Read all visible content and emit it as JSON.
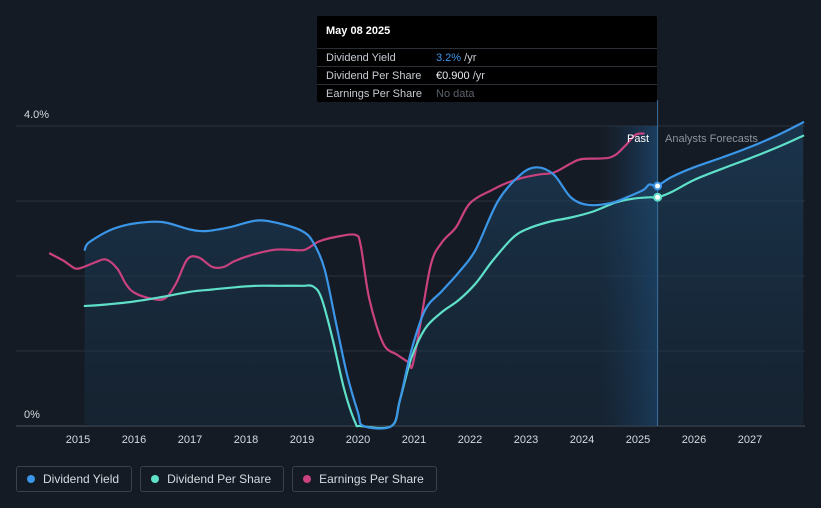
{
  "chart_data": {
    "type": "line",
    "y_axis": {
      "ticks": [
        "4.0%",
        "0%"
      ],
      "ylim": [
        0,
        4.0
      ]
    },
    "x_axis": {
      "ticks": [
        "2015",
        "2016",
        "2017",
        "2018",
        "2019",
        "2020",
        "2021",
        "2022",
        "2023",
        "2024",
        "2025",
        "2026",
        "2027"
      ]
    },
    "grid": true,
    "regions": {
      "past_label": "Past",
      "forecast_label": "Analysts Forecasts",
      "split_x": 2025.35
    },
    "series": [
      {
        "name": "Dividend Yield",
        "color": "#3b96e8",
        "points": [
          [
            2015.12,
            2.35
          ],
          [
            2015.2,
            2.45
          ],
          [
            2015.6,
            2.62
          ],
          [
            2016.0,
            2.7
          ],
          [
            2016.5,
            2.72
          ],
          [
            2017.0,
            2.62
          ],
          [
            2017.3,
            2.6
          ],
          [
            2017.7,
            2.65
          ],
          [
            2018.2,
            2.74
          ],
          [
            2018.6,
            2.7
          ],
          [
            2019.0,
            2.6
          ],
          [
            2019.2,
            2.45
          ],
          [
            2019.4,
            2.1
          ],
          [
            2019.6,
            1.4
          ],
          [
            2019.8,
            0.7
          ],
          [
            2020.0,
            0.18
          ],
          [
            2020.1,
            0
          ],
          [
            2020.6,
            0
          ],
          [
            2020.75,
            0.35
          ],
          [
            2020.95,
            1.0
          ],
          [
            2021.2,
            1.55
          ],
          [
            2021.5,
            1.8
          ],
          [
            2021.8,
            2.05
          ],
          [
            2022.1,
            2.35
          ],
          [
            2022.5,
            3.0
          ],
          [
            2022.9,
            3.35
          ],
          [
            2023.2,
            3.45
          ],
          [
            2023.5,
            3.35
          ],
          [
            2023.8,
            3.05
          ],
          [
            2024.1,
            2.95
          ],
          [
            2024.5,
            2.97
          ],
          [
            2024.8,
            3.05
          ],
          [
            2025.1,
            3.15
          ],
          [
            2025.2,
            3.22
          ],
          [
            2025.3,
            3.2
          ],
          [
            2025.35,
            3.2
          ],
          [
            2025.6,
            3.32
          ],
          [
            2026.0,
            3.45
          ],
          [
            2026.5,
            3.58
          ],
          [
            2027.0,
            3.72
          ],
          [
            2027.5,
            3.88
          ],
          [
            2027.95,
            4.05
          ]
        ]
      },
      {
        "name": "Dividend Per Share",
        "color": "#5fe0c9",
        "points": [
          [
            2015.12,
            1.6
          ],
          [
            2015.5,
            1.62
          ],
          [
            2016.0,
            1.66
          ],
          [
            2016.5,
            1.72
          ],
          [
            2017.0,
            1.79
          ],
          [
            2017.4,
            1.82
          ],
          [
            2017.8,
            1.85
          ],
          [
            2018.2,
            1.87
          ],
          [
            2018.6,
            1.87
          ],
          [
            2019.0,
            1.87
          ],
          [
            2019.2,
            1.86
          ],
          [
            2019.35,
            1.7
          ],
          [
            2019.55,
            1.15
          ],
          [
            2019.75,
            0.5
          ],
          [
            2019.95,
            0.05
          ],
          [
            2020.05,
            0
          ],
          [
            2020.6,
            0
          ],
          [
            2020.75,
            0.35
          ],
          [
            2020.95,
            0.9
          ],
          [
            2021.2,
            1.3
          ],
          [
            2021.5,
            1.52
          ],
          [
            2021.8,
            1.68
          ],
          [
            2022.1,
            1.9
          ],
          [
            2022.4,
            2.2
          ],
          [
            2022.75,
            2.5
          ],
          [
            2023.0,
            2.62
          ],
          [
            2023.4,
            2.72
          ],
          [
            2023.8,
            2.78
          ],
          [
            2024.2,
            2.86
          ],
          [
            2024.6,
            2.98
          ],
          [
            2024.9,
            3.03
          ],
          [
            2025.2,
            3.05
          ],
          [
            2025.35,
            3.05
          ],
          [
            2025.6,
            3.12
          ],
          [
            2026.0,
            3.28
          ],
          [
            2026.5,
            3.43
          ],
          [
            2027.0,
            3.57
          ],
          [
            2027.5,
            3.72
          ],
          [
            2027.95,
            3.87
          ]
        ]
      },
      {
        "name": "Earnings Per Share",
        "color": "#c9427f",
        "points": [
          [
            2014.5,
            2.3
          ],
          [
            2014.75,
            2.2
          ],
          [
            2014.95,
            2.1
          ],
          [
            2015.1,
            2.12
          ],
          [
            2015.3,
            2.18
          ],
          [
            2015.5,
            2.22
          ],
          [
            2015.7,
            2.1
          ],
          [
            2015.85,
            1.9
          ],
          [
            2016.0,
            1.78
          ],
          [
            2016.3,
            1.7
          ],
          [
            2016.55,
            1.7
          ],
          [
            2016.75,
            1.9
          ],
          [
            2016.95,
            2.22
          ],
          [
            2017.15,
            2.25
          ],
          [
            2017.4,
            2.12
          ],
          [
            2017.6,
            2.12
          ],
          [
            2017.8,
            2.2
          ],
          [
            2018.1,
            2.28
          ],
          [
            2018.5,
            2.35
          ],
          [
            2018.8,
            2.35
          ],
          [
            2019.05,
            2.35
          ],
          [
            2019.3,
            2.46
          ],
          [
            2019.6,
            2.52
          ],
          [
            2019.95,
            2.55
          ],
          [
            2020.05,
            2.4
          ],
          [
            2020.2,
            1.7
          ],
          [
            2020.45,
            1.1
          ],
          [
            2020.7,
            0.95
          ],
          [
            2020.9,
            0.85
          ],
          [
            2020.97,
            0.8
          ],
          [
            2021.1,
            1.3
          ],
          [
            2021.3,
            2.15
          ],
          [
            2021.5,
            2.45
          ],
          [
            2021.75,
            2.65
          ],
          [
            2022.0,
            2.97
          ],
          [
            2022.4,
            3.15
          ],
          [
            2022.8,
            3.28
          ],
          [
            2023.2,
            3.35
          ],
          [
            2023.5,
            3.38
          ],
          [
            2023.8,
            3.5
          ],
          [
            2024.0,
            3.56
          ],
          [
            2024.5,
            3.58
          ],
          [
            2024.75,
            3.72
          ],
          [
            2024.95,
            3.88
          ],
          [
            2025.1,
            3.9
          ]
        ]
      }
    ],
    "markers": [
      {
        "series": "Dividend Yield",
        "x": 2025.35,
        "y": 3.2
      },
      {
        "series": "Dividend Per Share",
        "x": 2025.35,
        "y": 3.05
      }
    ]
  },
  "tooltip": {
    "date": "May 08 2025",
    "rows": [
      {
        "label": "Dividend Yield",
        "value": "3.2%",
        "unit": " /yr"
      },
      {
        "label": "Dividend Per Share",
        "value": "€0.900",
        "unit": " /yr"
      },
      {
        "label": "Earnings Per Share",
        "value": "No data",
        "unit": ""
      }
    ]
  },
  "legend": [
    {
      "label": "Dividend Yield",
      "color": "#3b96e8"
    },
    {
      "label": "Dividend Per Share",
      "color": "#5fe0c9"
    },
    {
      "label": "Earnings Per Share",
      "color": "#c9427f"
    }
  ]
}
